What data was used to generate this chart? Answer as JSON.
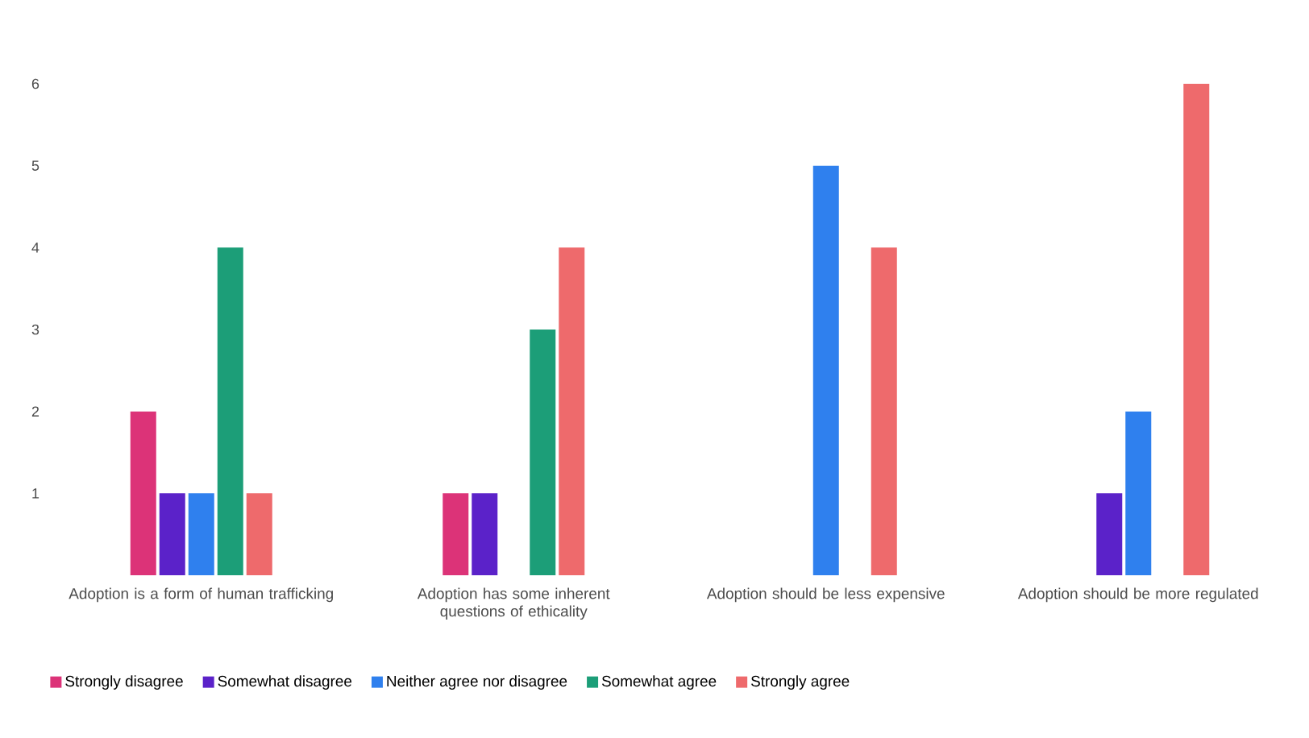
{
  "chart_data": {
    "type": "bar",
    "categories": [
      "Adoption is a form of human trafficking",
      "Adoption has some inherent questions of ethicality",
      "Adoption should be less expensive",
      "Adoption should be more regulated"
    ],
    "series": [
      {
        "name": "Strongly disagree",
        "color": "#dc3378",
        "values": [
          2,
          1,
          0,
          0
        ]
      },
      {
        "name": "Somewhat disagree",
        "color": "#5b22c9",
        "values": [
          1,
          1,
          0,
          1
        ]
      },
      {
        "name": "Neither agree nor disagree",
        "color": "#2f80ee",
        "values": [
          1,
          0,
          5,
          2
        ]
      },
      {
        "name": "Somewhat agree",
        "color": "#1c9e78",
        "values": [
          4,
          3,
          0,
          0
        ]
      },
      {
        "name": "Strongly agree",
        "color": "#ee6a6c",
        "values": [
          1,
          4,
          4,
          6
        ]
      }
    ],
    "ylim": [
      0,
      6
    ],
    "yticks": [
      1,
      2,
      3,
      4,
      5,
      6
    ],
    "legend": "bottom"
  }
}
